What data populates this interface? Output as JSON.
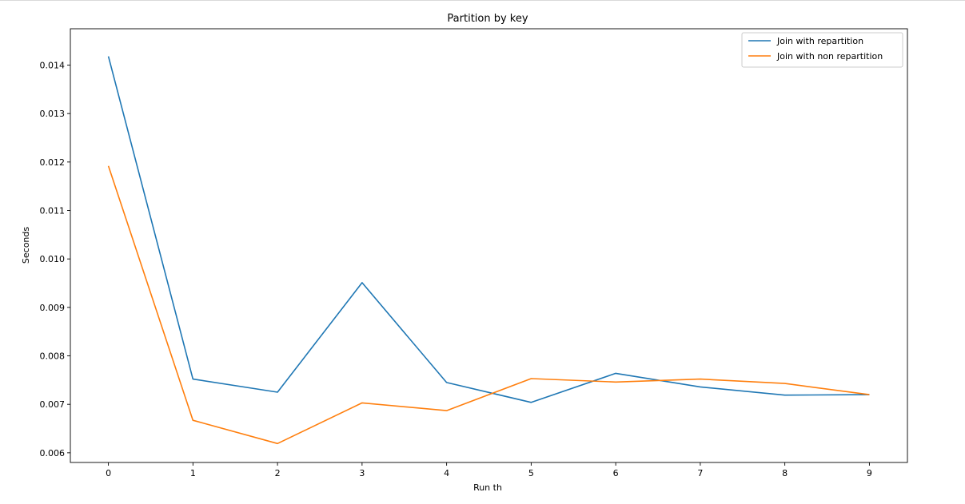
{
  "chart_data": {
    "type": "line",
    "title": "Partition by key",
    "xlabel": "Run th",
    "ylabel": "Seconds",
    "x": [
      0,
      1,
      2,
      3,
      4,
      5,
      6,
      7,
      8,
      9
    ],
    "xticks": [
      "0",
      "1",
      "2",
      "3",
      "4",
      "5",
      "6",
      "7",
      "8",
      "9"
    ],
    "yticks": [
      "0.006",
      "0.007",
      "0.008",
      "0.009",
      "0.010",
      "0.011",
      "0.012",
      "0.013",
      "0.014"
    ],
    "xlim": [
      -0.45,
      9.45
    ],
    "ylim": [
      0.0058,
      0.01475
    ],
    "grid": false,
    "legend_position": "top-right",
    "series": [
      {
        "name": "Join with repartition",
        "color": "#1f77b4",
        "values": [
          0.01418,
          0.00752,
          0.00725,
          0.00951,
          0.00745,
          0.00704,
          0.00764,
          0.00736,
          0.00719,
          0.0072
        ]
      },
      {
        "name": "Join with non repartition",
        "color": "#ff7f0e",
        "values": [
          0.01192,
          0.00667,
          0.00619,
          0.00703,
          0.00687,
          0.00753,
          0.00746,
          0.00752,
          0.00743,
          0.0072
        ]
      }
    ]
  }
}
